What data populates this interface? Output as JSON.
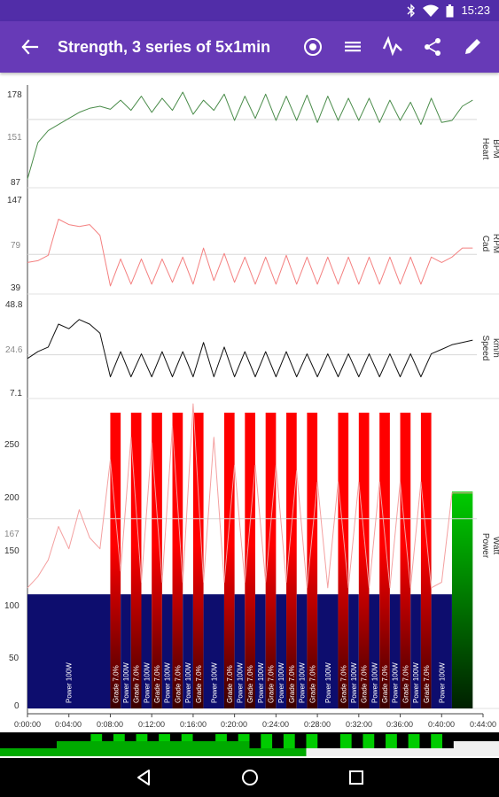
{
  "status_bar": {
    "time": "15:23",
    "icons": [
      "bluetooth-icon",
      "wifi-icon",
      "battery-icon"
    ]
  },
  "app_bar": {
    "title": "Strength, 3 series of 5x1min",
    "actions": [
      "navigate-back-icon",
      "record-icon",
      "list-icon",
      "activity-icon",
      "share-icon",
      "edit-icon"
    ],
    "background": "#673ab7",
    "status_background": "#512da8"
  },
  "panels": {
    "heart": {
      "label_top": "Heart",
      "label_bottom": "BPM",
      "ticks": [
        "178",
        "151",
        "87"
      ],
      "color": "#4a8c4a"
    },
    "cadence": {
      "label_top": "Cad",
      "label_bottom": "RPM",
      "ticks": [
        "147",
        "79",
        "39"
      ],
      "color": "#f48080"
    },
    "speed": {
      "label_top": "Speed",
      "label_bottom": "km/h",
      "ticks": [
        "48.8",
        "24.6",
        "7.1"
      ],
      "color": "#111111"
    },
    "power": {
      "label_top": "Power",
      "label_bottom": "Watt",
      "ticks": [
        "250",
        "200",
        "167",
        "150",
        "100",
        "50",
        "0"
      ],
      "color": "#f4a0a0"
    }
  },
  "time_axis": [
    "0:00:00",
    "0:04:00",
    "0:08:00",
    "0:12:00",
    "0:16:00",
    "0:20:00",
    "0:24:00",
    "0:28:00",
    "0:32:00",
    "0:36:00",
    "0:40:00",
    "0:44:00"
  ],
  "segments": {
    "base": {
      "label": "Power 100W",
      "value_watt": 100,
      "color": "#0d0d6e"
    },
    "interval": {
      "label": "Grade 7.0%",
      "color_top": "#ff0000",
      "color_bottom": "#3a0000"
    },
    "recovery": {
      "label": "Power 100W"
    },
    "cooldown": {
      "color_top": "#00cc00",
      "color_bottom": "#002000"
    }
  },
  "chart_data": {
    "type": "line",
    "x_unit": "minutes",
    "x_range": [
      0,
      44
    ],
    "series": [
      {
        "name": "Heart",
        "unit": "BPM",
        "ylim": [
          87,
          178
        ],
        "reference": 151,
        "x": [
          0,
          1,
          2,
          3,
          4,
          5,
          6,
          7,
          8,
          9,
          10,
          11,
          12,
          13,
          14,
          15,
          16,
          17,
          18,
          19,
          20,
          21,
          22,
          23,
          24,
          25,
          26,
          27,
          28,
          29,
          30,
          31,
          32,
          33,
          34,
          35,
          36,
          37,
          38,
          39,
          40,
          41,
          42,
          43
        ],
        "values": [
          92,
          128,
          140,
          146,
          152,
          158,
          162,
          164,
          161,
          170,
          160,
          174,
          158,
          172,
          160,
          178,
          156,
          170,
          160,
          176,
          150,
          174,
          152,
          176,
          150,
          174,
          150,
          175,
          148,
          174,
          150,
          172,
          150,
          172,
          148,
          170,
          150,
          168,
          146,
          172,
          148,
          150,
          164,
          170
        ]
      },
      {
        "name": "Cad",
        "unit": "RPM",
        "ylim": [
          39,
          147
        ],
        "reference": 79,
        "x": [
          0,
          1,
          2,
          3,
          4,
          5,
          6,
          7,
          8,
          9,
          10,
          11,
          12,
          13,
          14,
          15,
          16,
          17,
          18,
          19,
          20,
          21,
          22,
          23,
          24,
          25,
          26,
          27,
          28,
          29,
          30,
          31,
          32,
          33,
          34,
          35,
          36,
          37,
          38,
          39,
          40,
          41,
          42,
          43
        ],
        "values": [
          70,
          72,
          78,
          118,
          112,
          110,
          112,
          100,
          44,
          74,
          46,
          74,
          46,
          74,
          48,
          76,
          46,
          86,
          50,
          80,
          48,
          76,
          46,
          76,
          46,
          78,
          46,
          76,
          46,
          76,
          46,
          76,
          46,
          76,
          46,
          76,
          46,
          76,
          46,
          76,
          70,
          76,
          86,
          86
        ]
      },
      {
        "name": "Speed",
        "unit": "km/h",
        "ylim": [
          7.1,
          48.8
        ],
        "reference": 24.6,
        "x": [
          0,
          1,
          2,
          3,
          4,
          5,
          6,
          7,
          8,
          9,
          10,
          11,
          12,
          13,
          14,
          15,
          16,
          17,
          18,
          19,
          20,
          21,
          22,
          23,
          24,
          25,
          26,
          27,
          28,
          29,
          30,
          31,
          32,
          33,
          34,
          35,
          36,
          37,
          38,
          39,
          40,
          41,
          42,
          43
        ],
        "values": [
          23,
          26,
          28,
          38,
          36,
          40,
          38,
          34,
          15,
          26,
          15,
          25,
          15,
          26,
          15,
          26,
          15,
          30,
          15,
          28,
          15,
          26,
          15,
          26,
          15,
          26,
          15,
          25,
          15,
          25,
          15,
          25,
          15,
          25,
          15,
          25,
          15,
          25,
          15,
          25,
          27,
          29,
          30,
          31
        ]
      },
      {
        "name": "Power",
        "unit": "Watt",
        "ylim": [
          0,
          270
        ],
        "reference": 167,
        "x": [
          0,
          1,
          2,
          3,
          4,
          5,
          6,
          7,
          8,
          9,
          10,
          11,
          12,
          13,
          14,
          15,
          16,
          17,
          18,
          19,
          20,
          21,
          22,
          23,
          24,
          25,
          26,
          27,
          28,
          29,
          30,
          31,
          32,
          33,
          34,
          35,
          36,
          37,
          38,
          39,
          40,
          41,
          42,
          43
        ],
        "values": [
          105,
          115,
          130,
          160,
          140,
          175,
          150,
          140,
          220,
          120,
          240,
          110,
          235,
          110,
          250,
          110,
          270,
          110,
          240,
          110,
          215,
          110,
          215,
          110,
          215,
          110,
          210,
          105,
          200,
          105,
          200,
          105,
          200,
          105,
          200,
          105,
          200,
          105,
          200,
          105,
          110,
          190,
          190,
          190
        ]
      }
    ],
    "segments_watt": [
      {
        "start": 0,
        "end": 8,
        "type": "power",
        "value": 100
      },
      {
        "start": 8,
        "end": 9,
        "type": "grade",
        "grade": 7.0
      },
      {
        "start": 9,
        "end": 10,
        "type": "power",
        "value": 100
      },
      {
        "start": 10,
        "end": 11,
        "type": "grade",
        "grade": 7.0
      },
      {
        "start": 11,
        "end": 12,
        "type": "power",
        "value": 100
      },
      {
        "start": 12,
        "end": 13,
        "type": "grade",
        "grade": 7.0
      },
      {
        "start": 13,
        "end": 14,
        "type": "power",
        "value": 100
      },
      {
        "start": 14,
        "end": 15,
        "type": "grade",
        "grade": 7.0
      },
      {
        "start": 15,
        "end": 16,
        "type": "power",
        "value": 100
      },
      {
        "start": 16,
        "end": 17,
        "type": "grade",
        "grade": 7.0
      },
      {
        "start": 17,
        "end": 19,
        "type": "power",
        "value": 100
      },
      {
        "start": 19,
        "end": 20,
        "type": "grade",
        "grade": 7.0
      },
      {
        "start": 20,
        "end": 21,
        "type": "power",
        "value": 100
      },
      {
        "start": 21,
        "end": 22,
        "type": "grade",
        "grade": 7.0
      },
      {
        "start": 22,
        "end": 23,
        "type": "power",
        "value": 100
      },
      {
        "start": 23,
        "end": 24,
        "type": "grade",
        "grade": 7.0
      },
      {
        "start": 24,
        "end": 25,
        "type": "power",
        "value": 100
      },
      {
        "start": 25,
        "end": 26,
        "type": "grade",
        "grade": 7.0
      },
      {
        "start": 26,
        "end": 27,
        "type": "power",
        "value": 100
      },
      {
        "start": 27,
        "end": 28,
        "type": "grade",
        "grade": 7.0
      },
      {
        "start": 28,
        "end": 30,
        "type": "power",
        "value": 100
      },
      {
        "start": 30,
        "end": 31,
        "type": "grade",
        "grade": 7.0
      },
      {
        "start": 31,
        "end": 32,
        "type": "power",
        "value": 100
      },
      {
        "start": 32,
        "end": 33,
        "type": "grade",
        "grade": 7.0
      },
      {
        "start": 33,
        "end": 34,
        "type": "power",
        "value": 100
      },
      {
        "start": 34,
        "end": 35,
        "type": "grade",
        "grade": 7.0
      },
      {
        "start": 35,
        "end": 36,
        "type": "power",
        "value": 100
      },
      {
        "start": 36,
        "end": 37,
        "type": "grade",
        "grade": 7.0
      },
      {
        "start": 37,
        "end": 38,
        "type": "power",
        "value": 100
      },
      {
        "start": 38,
        "end": 39,
        "type": "grade",
        "grade": 7.0
      },
      {
        "start": 39,
        "end": 41,
        "type": "power",
        "value": 100
      },
      {
        "start": 41,
        "end": 43,
        "type": "power",
        "value": 190
      }
    ]
  },
  "navigation": [
    "nav-back-icon",
    "nav-home-icon",
    "nav-recents-icon"
  ]
}
